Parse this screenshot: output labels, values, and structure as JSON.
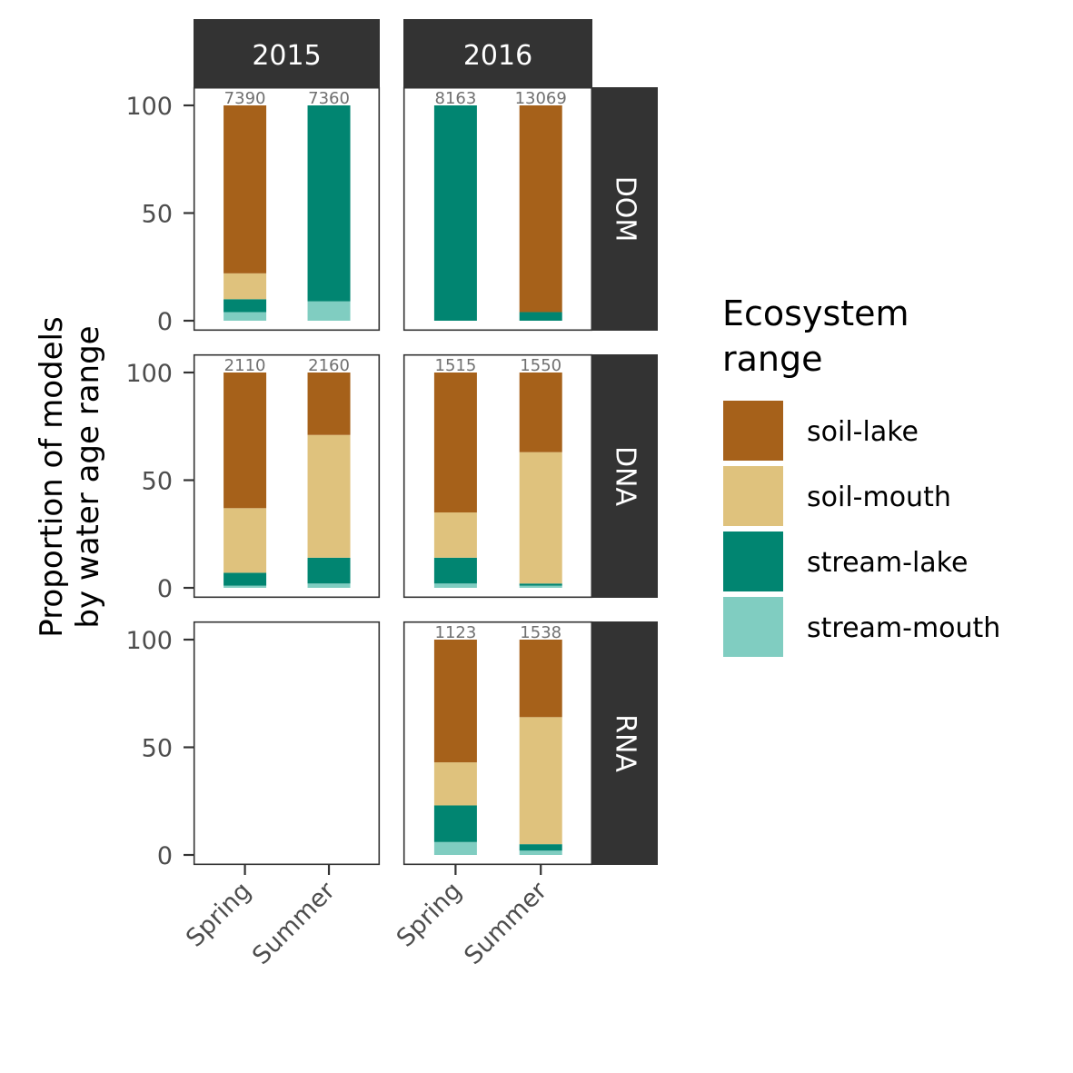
{
  "chart_data": {
    "type": "bar",
    "stacked": true,
    "facet_columns": [
      "2015",
      "2016"
    ],
    "facet_rows": [
      "DOM",
      "DNA",
      "RNA"
    ],
    "categories": [
      "Spring",
      "Summer"
    ],
    "ylabel_lines": [
      "Proportion of models",
      "by water age range"
    ],
    "xlabel": "",
    "ylim": [
      0,
      100
    ],
    "yticks": [
      0,
      50,
      100
    ],
    "grid": false,
    "legend": {
      "title_lines": [
        "Ecosystem",
        "range"
      ],
      "placement": "right",
      "entries": [
        {
          "name": "soil-lake",
          "color": "#A6611A"
        },
        {
          "name": "soil-mouth",
          "color": "#DFC27D"
        },
        {
          "name": "stream-lake",
          "color": "#018571"
        },
        {
          "name": "stream-mouth",
          "color": "#80CDC1"
        }
      ]
    },
    "stack_order_bottom_to_top": [
      "stream-mouth",
      "stream-lake",
      "soil-mouth",
      "soil-lake"
    ],
    "panels": [
      {
        "row": "DOM",
        "col": "2015",
        "bars": [
          {
            "category": "Spring",
            "n": "7390",
            "values": {
              "stream-mouth": 4,
              "stream-lake": 6,
              "soil-mouth": 12,
              "soil-lake": 78
            }
          },
          {
            "category": "Summer",
            "n": "7360",
            "values": {
              "stream-mouth": 9,
              "stream-lake": 91,
              "soil-mouth": 0,
              "soil-lake": 0
            }
          }
        ]
      },
      {
        "row": "DOM",
        "col": "2016",
        "bars": [
          {
            "category": "Spring",
            "n": "8163",
            "values": {
              "stream-mouth": 0,
              "stream-lake": 100,
              "soil-mouth": 0,
              "soil-lake": 0
            }
          },
          {
            "category": "Summer",
            "n": "13069",
            "values": {
              "stream-mouth": 0,
              "stream-lake": 4,
              "soil-mouth": 0,
              "soil-lake": 96
            }
          }
        ]
      },
      {
        "row": "DNA",
        "col": "2015",
        "bars": [
          {
            "category": "Spring",
            "n": "2110",
            "values": {
              "stream-mouth": 1,
              "stream-lake": 6,
              "soil-mouth": 30,
              "soil-lake": 63
            }
          },
          {
            "category": "Summer",
            "n": "2160",
            "values": {
              "stream-mouth": 2,
              "stream-lake": 12,
              "soil-mouth": 57,
              "soil-lake": 29
            }
          }
        ]
      },
      {
        "row": "DNA",
        "col": "2016",
        "bars": [
          {
            "category": "Spring",
            "n": "1515",
            "values": {
              "stream-mouth": 2,
              "stream-lake": 12,
              "soil-mouth": 21,
              "soil-lake": 65
            }
          },
          {
            "category": "Summer",
            "n": "1550",
            "values": {
              "stream-mouth": 1,
              "stream-lake": 1,
              "soil-mouth": 61,
              "soil-lake": 37
            }
          }
        ]
      },
      {
        "row": "RNA",
        "col": "2015",
        "bars": []
      },
      {
        "row": "RNA",
        "col": "2016",
        "bars": [
          {
            "category": "Spring",
            "n": "1123",
            "values": {
              "stream-mouth": 6,
              "stream-lake": 17,
              "soil-mouth": 20,
              "soil-lake": 57
            }
          },
          {
            "category": "Summer",
            "n": "1538",
            "values": {
              "stream-mouth": 2,
              "stream-lake": 3,
              "soil-mouth": 59,
              "soil-lake": 36
            }
          }
        ]
      }
    ]
  }
}
